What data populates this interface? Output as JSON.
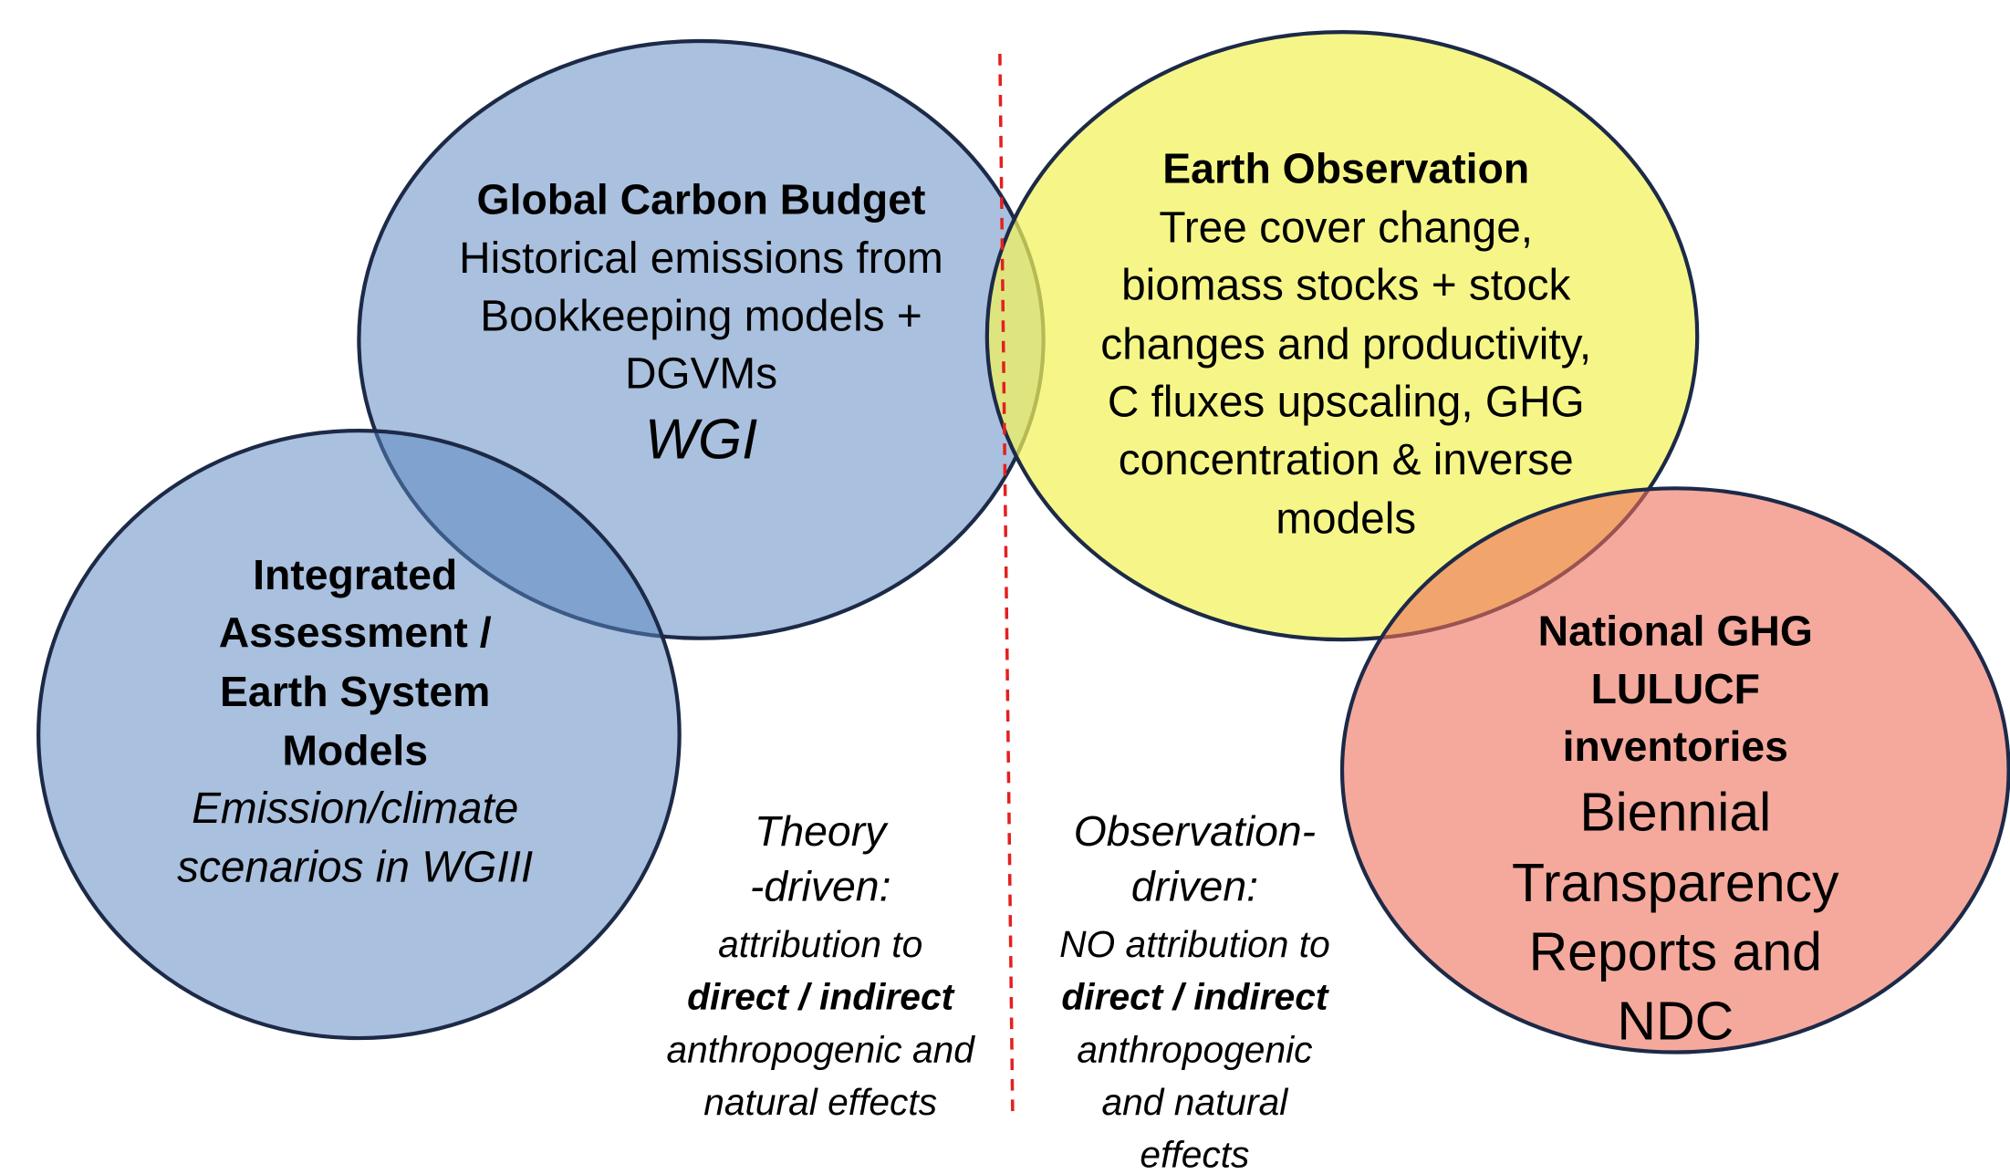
{
  "nodes": [
    {
      "title": [
        "Global Carbon Budget"
      ],
      "text": [
        "Historical emissions from",
        "Bookkeeping models +",
        "DGVMs"
      ],
      "note": "WGI"
    },
    {
      "title": [
        "Integrated",
        "Assessment /",
        "Earth System",
        "Models"
      ],
      "text": [
        "Emission/climate",
        "scenarios in WGIII"
      ]
    },
    {
      "title": [
        "Earth Observation"
      ],
      "text": [
        "Tree cover change,",
        "biomass stocks + stock",
        "changes and productivity,",
        "C fluxes upscaling, GHG",
        "concentration & inverse",
        "models"
      ]
    },
    {
      "title": [
        "National GHG",
        "LULUCF",
        "inventories"
      ],
      "text": [
        "Biennial",
        "Transparency",
        "Reports and",
        "NDC"
      ]
    }
  ],
  "annotations": [
    {
      "heading": [
        "Theory",
        "-driven:"
      ],
      "lines": [
        "attribution to",
        "direct / indirect",
        "anthropogenic and",
        "natural effects"
      ]
    },
    {
      "heading": [
        "Observation-",
        "driven:"
      ],
      "lines": [
        "NO attribution to",
        "direct / indirect",
        "anthropogenic",
        "and natural",
        "effects"
      ]
    }
  ]
}
